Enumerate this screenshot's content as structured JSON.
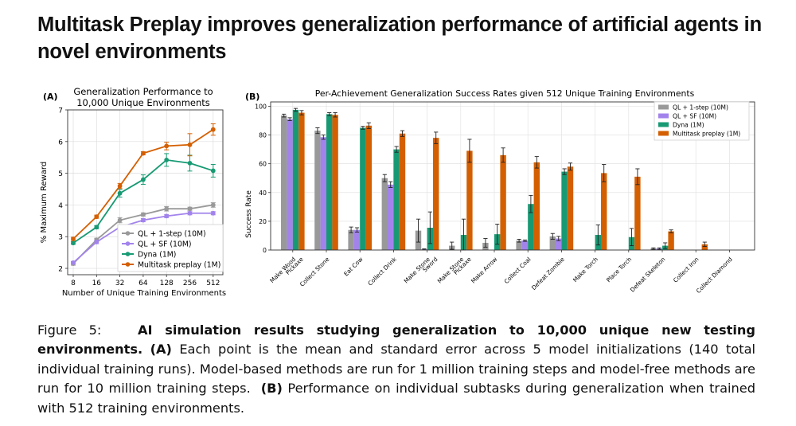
{
  "title": "Multitask Preplay improves generalization performance of artificial agents in novel environments",
  "caption": {
    "figure_label": "Figure 5:",
    "headline": "AI simulation results studying generalization to 10,000 unique new testing environments.",
    "a_label": "(A)",
    "a_text": "Each point is the mean and standard error across 5 model initializations (140 total individual training runs). Model-based methods are run for 1 million training steps and model-free methods are run for 10 million training steps.",
    "b_label": "(B)",
    "b_text": "Performance on individual subtasks during generalization when trained with 512 training environments."
  },
  "colors": {
    "ql": "#999999",
    "sf": "#a283ec",
    "dyna": "#179a73",
    "preplay": "#d45f00"
  },
  "chart_data": [
    {
      "type": "line",
      "panel": "(A)",
      "title": "Generalization Performance to 10,000 Unique Environments",
      "title_lines": [
        "Generalization Performance to",
        "10,000 Unique Environments"
      ],
      "xlabel": "Number of Unique Training Environments",
      "ylabel": "% Maximum Reward",
      "x": [
        8,
        16,
        32,
        64,
        128,
        256,
        512
      ],
      "x_ticks": [
        "8",
        "16",
        "32",
        "64",
        "128",
        "256",
        "512"
      ],
      "ylim": [
        1.8,
        7
      ],
      "y_ticks": [
        2,
        3,
        4,
        5,
        6,
        7
      ],
      "legend_position": "bottom-right",
      "series": [
        {
          "name": "QL + 1-step (10M)",
          "color_key": "ql",
          "values": [
            2.15,
            2.9,
            3.52,
            3.7,
            3.88,
            3.88,
            4.0
          ],
          "errors": [
            0.05,
            0.05,
            0.08,
            0.05,
            0.07,
            0.05,
            0.07
          ]
        },
        {
          "name": "QL + SF (10M)",
          "color_key": "sf",
          "values": [
            2.18,
            2.83,
            3.3,
            3.52,
            3.65,
            3.74,
            3.74
          ],
          "errors": [
            0.04,
            0.05,
            0.06,
            0.05,
            0.05,
            0.05,
            0.05
          ]
        },
        {
          "name": "Dyna (1M)",
          "color_key": "dyna",
          "values": [
            2.8,
            3.3,
            4.37,
            4.8,
            5.42,
            5.32,
            5.08
          ],
          "errors": [
            0.04,
            0.05,
            0.12,
            0.15,
            0.2,
            0.25,
            0.2
          ]
        },
        {
          "name": "Multitask preplay (1M)",
          "color_key": "preplay",
          "values": [
            2.93,
            3.63,
            4.6,
            5.63,
            5.86,
            5.9,
            6.38
          ],
          "errors": [
            0.05,
            0.05,
            0.08,
            0.05,
            0.12,
            0.35,
            0.18
          ]
        }
      ]
    },
    {
      "type": "bar",
      "panel": "(B)",
      "title": "Per-Achievement Generalization Success Rates given 512 Unique Training Environments",
      "ylabel": "Success Rate",
      "ylim": [
        0,
        103
      ],
      "y_ticks": [
        0,
        20,
        40,
        60,
        80,
        100
      ],
      "legend_position": "top-right",
      "categories": [
        "Make Wood Pickaxe",
        "Collect Stone",
        "Eat Cow",
        "Collect Drink",
        "Make Stone Sword",
        "Make Stone Pickaxe",
        "Make Arrow",
        "Collect Coal",
        "Defeat Zombie",
        "Make Torch",
        "Place Torch",
        "Defeat Skeleton",
        "Collect Iron",
        "Collect Diamond"
      ],
      "category_lines": [
        [
          "Make Wood",
          "Pickaxe"
        ],
        [
          "Collect Stone"
        ],
        [
          "Eat Cow"
        ],
        [
          "Collect Drink"
        ],
        [
          "Make Stone",
          "Sword"
        ],
        [
          "Make Stone",
          "Pickaxe"
        ],
        [
          "Make Arrow"
        ],
        [
          "Collect Coal"
        ],
        [
          "Defeat Zombie"
        ],
        [
          "Make Torch"
        ],
        [
          "Place Torch"
        ],
        [
          "Defeat Skeleton"
        ],
        [
          "Collect Iron"
        ],
        [
          "Collect Diamond"
        ]
      ],
      "series": [
        {
          "name": "QL + 1-step (10M)",
          "color_key": "ql",
          "values": [
            93.5,
            83,
            14,
            50,
            13.5,
            3,
            5,
            6.5,
            9.5,
            0,
            0,
            1,
            0,
            0
          ],
          "errors": [
            1,
            2,
            2,
            2.5,
            8,
            2.5,
            3,
            1,
            2,
            0,
            0,
            0.5,
            0,
            0
          ]
        },
        {
          "name": "QL + SF (10M)",
          "color_key": "sf",
          "values": [
            91,
            78.5,
            14,
            45.5,
            0.5,
            0,
            0,
            6.5,
            8,
            0,
            0,
            1,
            0,
            0
          ],
          "errors": [
            1,
            1.5,
            1.5,
            2,
            0.3,
            0,
            0,
            0.5,
            1.5,
            0,
            0,
            0.5,
            0,
            0
          ]
        },
        {
          "name": "Dyna (1M)",
          "color_key": "dyna",
          "values": [
            97.5,
            94.5,
            85,
            70,
            15.5,
            10.5,
            11,
            32,
            54.5,
            10.5,
            9,
            3,
            0,
            0
          ],
          "errors": [
            1,
            1,
            1,
            2,
            11,
            11,
            7,
            6,
            2,
            7,
            6,
            2,
            0,
            0
          ]
        },
        {
          "name": "Multitask preplay (1M)",
          "color_key": "preplay",
          "values": [
            95.5,
            94,
            86.5,
            81,
            78,
            69,
            66,
            61,
            58,
            53.5,
            51,
            13,
            4,
            0
          ],
          "errors": [
            1.5,
            1.5,
            2,
            2,
            4,
            8,
            5,
            4,
            2.5,
            6,
            5.5,
            1,
            1.5,
            0
          ]
        }
      ]
    }
  ]
}
